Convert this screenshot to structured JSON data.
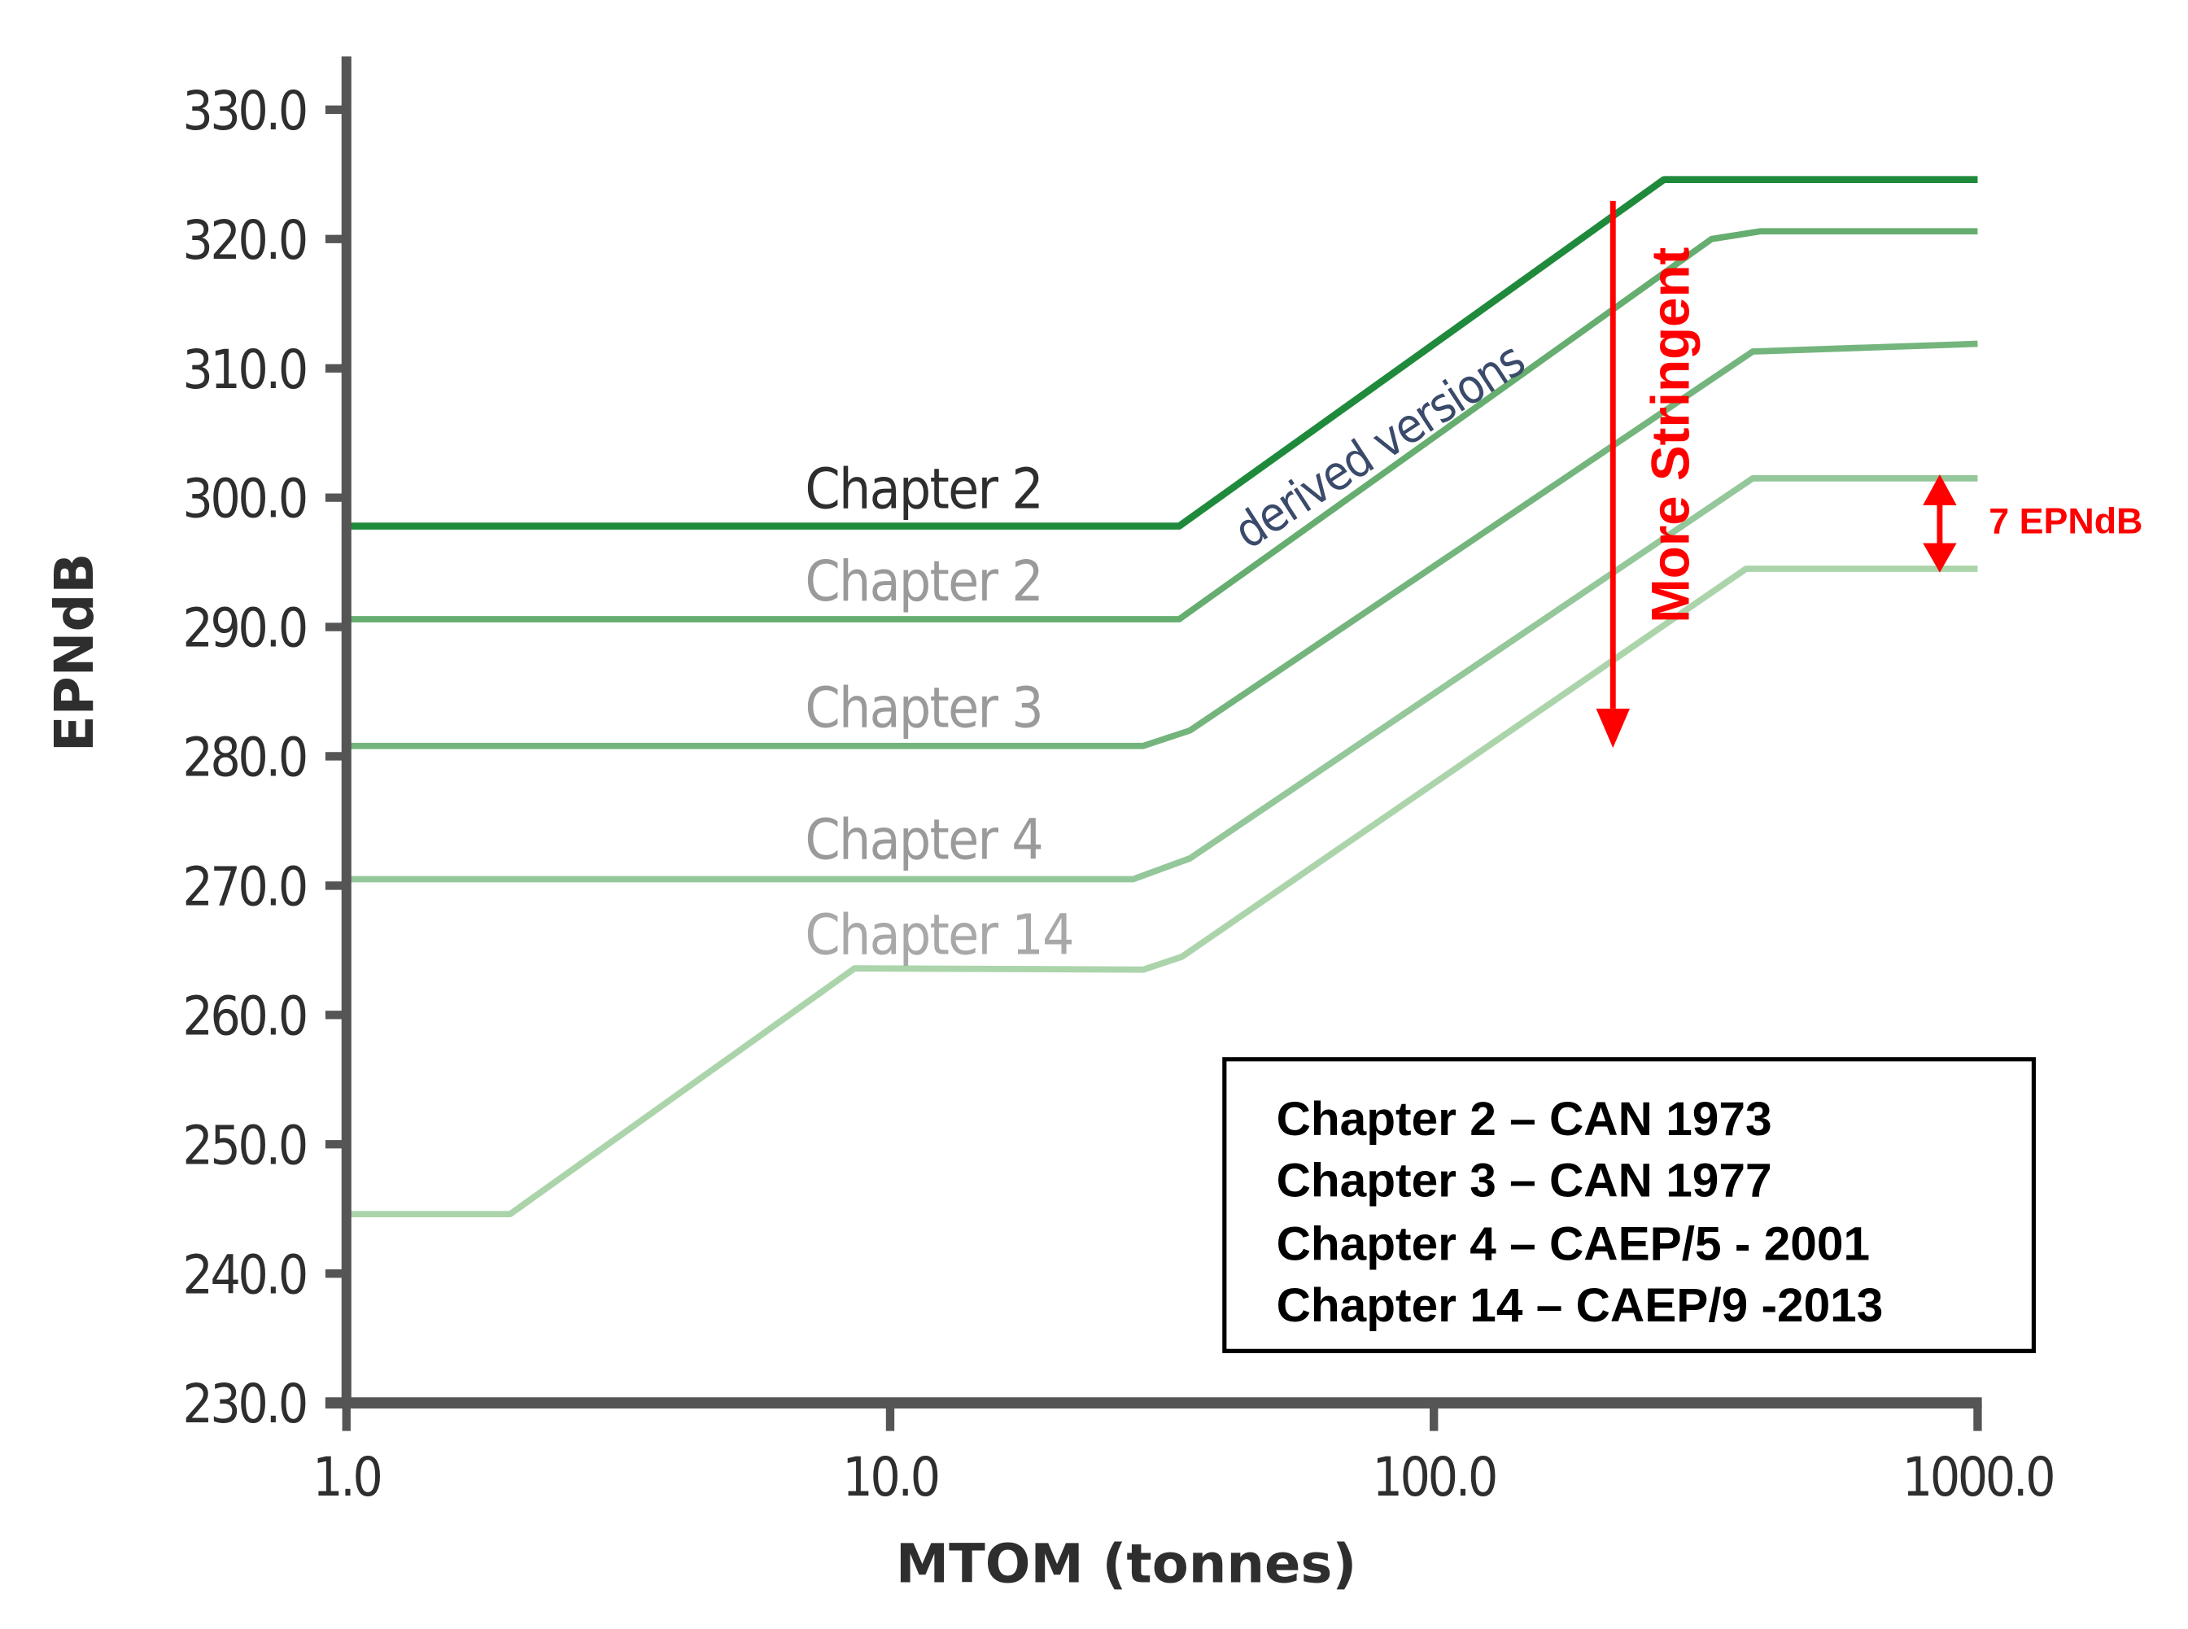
{
  "chart_data": {
    "type": "line",
    "xlabel": "MTOM (tonnes)",
    "ylabel": "EPNdB",
    "xscale": "log",
    "xlim": [
      1,
      1000
    ],
    "ylim": [
      230,
      330
    ],
    "grid": false,
    "x_ticks": [
      "1.0",
      "10.0",
      "100.0",
      "1000.0"
    ],
    "x_tick_values": [
      1,
      10,
      100,
      1000
    ],
    "y_ticks": [
      "330.0",
      "320.0",
      "310.0",
      "300.0",
      "290.0",
      "280.0",
      "270.0",
      "260.0",
      "250.0",
      "240.0",
      "230.0"
    ],
    "y_tick_values": [
      330,
      320,
      310,
      300,
      290,
      280,
      270,
      260,
      250,
      240,
      230
    ],
    "series": [
      {
        "name": "Chapter 2",
        "color": "#1f8a3b",
        "points": [
          [
            1,
            297.8
          ],
          [
            34,
            297.8
          ],
          [
            265,
            324.6
          ],
          [
            1000,
            324.6
          ]
        ]
      },
      {
        "name": "Chapter 2",
        "color": "#66ad70",
        "points": [
          [
            1,
            290.6
          ],
          [
            34,
            290.6
          ],
          [
            324,
            320.0
          ],
          [
            398,
            320.6
          ],
          [
            1000,
            320.6
          ]
        ]
      },
      {
        "name": "Chapter 3",
        "color": "#74b57d",
        "points": [
          [
            1,
            280.8
          ],
          [
            29.2,
            280.8
          ],
          [
            35.6,
            282.0
          ],
          [
            386,
            311.3
          ],
          [
            1000,
            311.9
          ]
        ]
      },
      {
        "name": "Chapter 4",
        "color": "#94c79a",
        "points": [
          [
            1,
            270.5
          ],
          [
            28,
            270.5
          ],
          [
            35.6,
            272.1
          ],
          [
            386,
            301.5
          ],
          [
            1000,
            301.5
          ]
        ]
      },
      {
        "name": "Chapter 14",
        "color": "#abd4ab",
        "points": [
          [
            1,
            244.6
          ],
          [
            2,
            244.6
          ],
          [
            8.6,
            263.6
          ],
          [
            29.2,
            263.5
          ],
          [
            34.4,
            264.5
          ],
          [
            375,
            294.5
          ],
          [
            1000,
            294.5
          ]
        ]
      }
    ],
    "label_colors": [
      "#2e2e2e",
      "#9a9a9a",
      "#9a9a9a",
      "#9a9a9a",
      "#a8a8a8"
    ],
    "annotations": {
      "derived": "derived versions",
      "stringent": "More Stringent",
      "gap": "7 EPNdB",
      "accent": "#ff0000"
    },
    "legend": {
      "placement": "bottom-right",
      "entries": [
        "Chapter 2 – CAN 1973",
        "Chapter 3 – CAN 1977",
        "Chapter 4 – CAEP/5 - 2001",
        "Chapter 14 – CAEP/9 -2013"
      ]
    }
  }
}
